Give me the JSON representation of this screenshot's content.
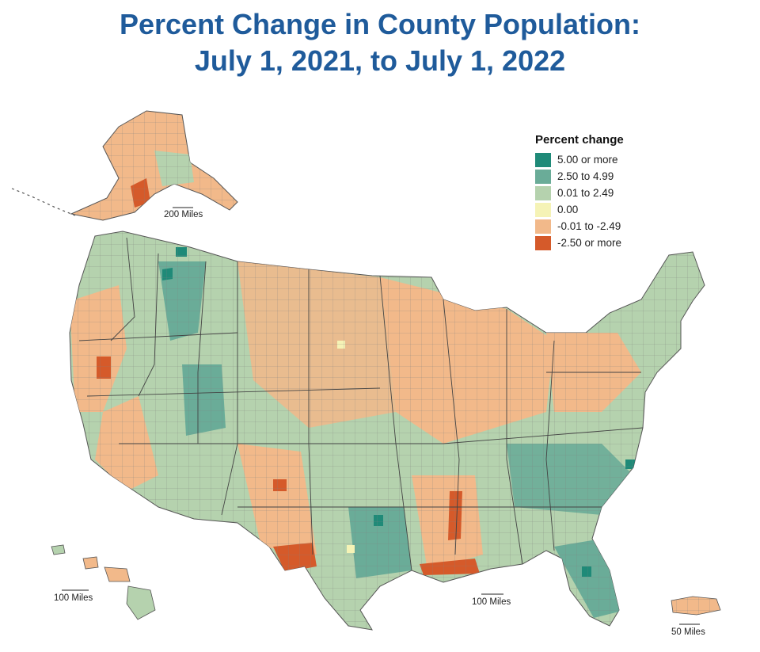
{
  "title_line1": "Percent Change in County Population:",
  "title_line2": "July 1, 2021, to July 1, 2022",
  "legend": {
    "title": "Percent change",
    "items": [
      {
        "label": "5.00 or more",
        "color": "#1f8a78"
      },
      {
        "label": "2.50 to 4.99",
        "color": "#6aac98"
      },
      {
        "label": "0.01 to 2.49",
        "color": "#b5d2ae"
      },
      {
        "label": "0.00",
        "color": "#f5f3b6"
      },
      {
        "label": "-0.01 to -2.49",
        "color": "#f2b98a"
      },
      {
        "label": "-2.50 or more",
        "color": "#d55a2a"
      }
    ]
  },
  "scale_bars": {
    "alaska": "200 Miles",
    "hawaii": "100 Miles",
    "conus": "100 Miles",
    "puerto_rico": "50 Miles"
  }
}
